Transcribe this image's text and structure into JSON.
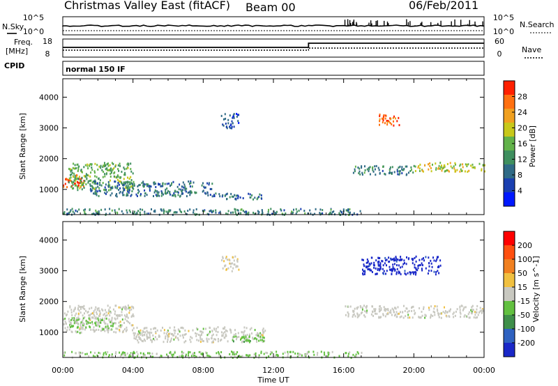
{
  "header": {
    "station": "Christmas Valley East (fitACF)",
    "beam": "Beam 00",
    "date": "06/Feb/2011"
  },
  "summary": {
    "nsky_label": "N.Sky",
    "nsearch_label": "N.Search",
    "nsky_ticks": [
      "10^5",
      "10^0"
    ],
    "nsearch_ticks": [
      "10^5",
      "10^0"
    ],
    "freq_label_1": "Freq.",
    "freq_label_2": "[MHz]",
    "freq_ticks": [
      "18",
      "8"
    ],
    "nave_label": "Nave",
    "nave_ticks": [
      "60",
      "0"
    ],
    "cpid_label": "CPID",
    "cpid_value": "normal 150 IF"
  },
  "colors": {
    "power_scale": [
      "#0018ff",
      "#1a3fb0",
      "#2f6a86",
      "#3f8f5f",
      "#62b24a",
      "#c8c81a",
      "#f0a020",
      "#ff7010",
      "#ff2000"
    ],
    "velocity_scale": [
      "#1a28c8",
      "#2f62c0",
      "#3f8f4a",
      "#62c040",
      "#c8c8c0",
      "#f0c040",
      "#f08020",
      "#ff5010",
      "#ff0000"
    ],
    "frame": "#000000"
  },
  "chart_data": [
    {
      "type": "heatmap",
      "name": "power-panel",
      "xlabel": "",
      "ylabel": "Slant Range [km]",
      "xlim": [
        0,
        24
      ],
      "ylim": [
        180,
        4600
      ],
      "yticks": [
        1000,
        2000,
        3000,
        4000
      ],
      "colorbar_label": "Power [dB]",
      "colorbar_ticks": [
        "28",
        "24",
        "20",
        "16",
        "12",
        "8",
        "4"
      ],
      "colorbar_range": [
        0,
        30
      ],
      "regions": [
        {
          "t0": 0.0,
          "t1": 1.2,
          "r0": 1100,
          "r1": 1500,
          "value": 28
        },
        {
          "t0": 0.3,
          "t1": 4.0,
          "r0": 1000,
          "r1": 1900,
          "value": 14
        },
        {
          "t0": 1.5,
          "t1": 8.5,
          "r0": 800,
          "r1": 1300,
          "value": 9
        },
        {
          "t0": 8.5,
          "t1": 11.5,
          "r0": 700,
          "r1": 900,
          "value": 8
        },
        {
          "t0": 9.0,
          "t1": 10.0,
          "r0": 3000,
          "r1": 3500,
          "value": 6
        },
        {
          "t0": 16.5,
          "t1": 20.0,
          "r0": 1500,
          "r1": 1800,
          "value": 10
        },
        {
          "t0": 18.0,
          "t1": 19.2,
          "r0": 3100,
          "r1": 3500,
          "value": 26
        },
        {
          "t0": 20.0,
          "t1": 24.0,
          "r0": 1600,
          "r1": 1900,
          "value": 18
        },
        {
          "t0": 0.0,
          "t1": 17.0,
          "r0": 200,
          "r1": 400,
          "value": 10
        }
      ]
    },
    {
      "type": "heatmap",
      "name": "velocity-panel",
      "xlabel": "Time UT",
      "ylabel": "Slant Range [km]",
      "xlim": [
        0,
        24
      ],
      "ylim": [
        180,
        4600
      ],
      "yticks": [
        1000,
        2000,
        3000,
        4000
      ],
      "xticks": [
        "00:00",
        "04:00",
        "08:00",
        "12:00",
        "16:00",
        "20:00",
        "00:00"
      ],
      "colorbar_label": "Velocity [m s^-1]",
      "colorbar_ticks": [
        "200",
        "100",
        "50",
        "15",
        "-15",
        "-50",
        "-100",
        "-200"
      ],
      "colorbar_range": [
        -250,
        250
      ],
      "regions": [
        {
          "t0": 0.0,
          "t1": 4.0,
          "r0": 1000,
          "r1": 1900,
          "value": 0
        },
        {
          "t0": 0.3,
          "t1": 3.0,
          "r0": 1100,
          "r1": 1500,
          "value": -40
        },
        {
          "t0": 4.0,
          "t1": 11.5,
          "r0": 700,
          "r1": 1200,
          "value": 0
        },
        {
          "t0": 9.5,
          "t1": 11.5,
          "r0": 700,
          "r1": 900,
          "value": -60
        },
        {
          "t0": 9.0,
          "t1": 10.0,
          "r0": 3000,
          "r1": 3500,
          "value": 10
        },
        {
          "t0": 16.0,
          "t1": 24.0,
          "r0": 1500,
          "r1": 1900,
          "value": 0
        },
        {
          "t0": 17.0,
          "t1": 21.5,
          "r0": 2900,
          "r1": 3500,
          "value": -220
        },
        {
          "t0": 0.0,
          "t1": 17.0,
          "r0": 200,
          "r1": 400,
          "value": -40
        }
      ]
    }
  ]
}
